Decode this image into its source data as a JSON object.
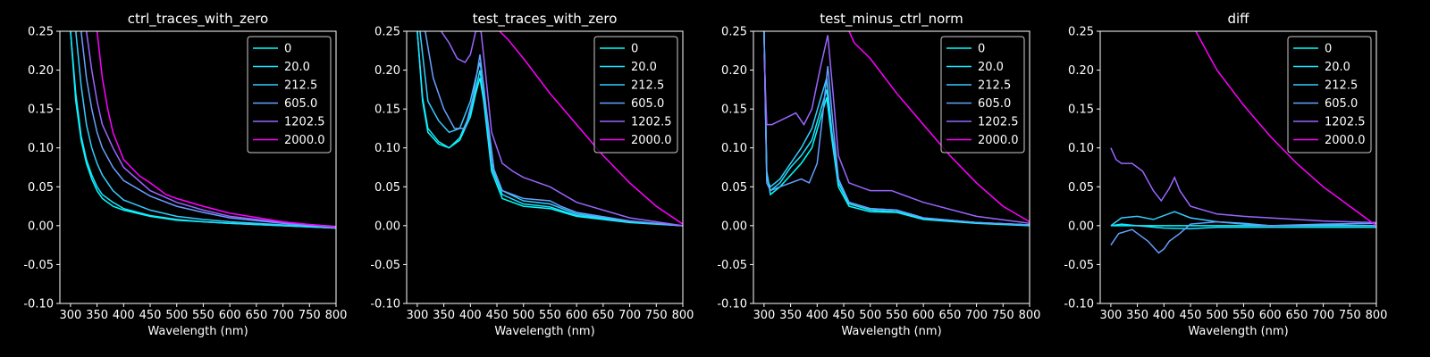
{
  "figure": {
    "background": "#000000",
    "foreground": "#ffffff"
  },
  "legend_colors": {
    "0": "#00ffff",
    "20.0": "#1ae5ff",
    "212.5": "#33ccff",
    "605.0": "#66a0ff",
    "1202.5": "#9966ff",
    "2000.0": "#ff00ff"
  },
  "chart_data": [
    {
      "type": "line",
      "title": "ctrl_traces_with_zero",
      "xlabel": "Wavelength (nm)",
      "ylabel": "",
      "xlim": [
        280,
        800
      ],
      "ylim": [
        -0.1,
        0.25
      ],
      "xticks": [
        300,
        350,
        400,
        450,
        500,
        550,
        600,
        650,
        700,
        750,
        800
      ],
      "yticks": [
        -0.1,
        -0.05,
        0.0,
        0.05,
        0.1,
        0.15,
        0.2,
        0.25
      ],
      "legend_position": "upper right",
      "series": [
        {
          "name": "0",
          "color": "#00ffff",
          "x": [
            300,
            310,
            320,
            330,
            340,
            350,
            360,
            380,
            400,
            450,
            500,
            550,
            600,
            700,
            800
          ],
          "y": [
            0.25,
            0.16,
            0.11,
            0.08,
            0.06,
            0.045,
            0.035,
            0.025,
            0.02,
            0.012,
            0.007,
            0.005,
            0.003,
            0.0,
            -0.003
          ]
        },
        {
          "name": "20.0",
          "color": "#1ae5ff",
          "x": [
            300,
            310,
            320,
            330,
            340,
            350,
            360,
            380,
            400,
            450,
            500,
            550,
            600,
            700,
            800
          ],
          "y": [
            0.25,
            0.17,
            0.115,
            0.085,
            0.065,
            0.05,
            0.04,
            0.03,
            0.022,
            0.013,
            0.008,
            0.005,
            0.003,
            0.0,
            -0.003
          ]
        },
        {
          "name": "212.5",
          "color": "#33ccff",
          "x": [
            310,
            320,
            330,
            340,
            350,
            360,
            380,
            400,
            450,
            500,
            550,
            600,
            700,
            800
          ],
          "y": [
            0.25,
            0.18,
            0.13,
            0.1,
            0.08,
            0.065,
            0.045,
            0.033,
            0.02,
            0.012,
            0.008,
            0.005,
            0.001,
            -0.002
          ]
        },
        {
          "name": "605.0",
          "color": "#66a0ff",
          "x": [
            320,
            330,
            340,
            350,
            360,
            380,
            400,
            450,
            500,
            550,
            600,
            700,
            800
          ],
          "y": [
            0.25,
            0.19,
            0.15,
            0.12,
            0.1,
            0.075,
            0.058,
            0.038,
            0.025,
            0.017,
            0.01,
            0.003,
            -0.002
          ]
        },
        {
          "name": "1202.5",
          "color": "#9966ff",
          "x": [
            330,
            340,
            350,
            360,
            380,
            400,
            450,
            500,
            550,
            600,
            700,
            800
          ],
          "y": [
            0.25,
            0.2,
            0.16,
            0.13,
            0.1,
            0.075,
            0.045,
            0.03,
            0.02,
            0.012,
            0.004,
            -0.001
          ]
        },
        {
          "name": "2000.0",
          "color": "#ff00ff",
          "x": [
            350,
            360,
            370,
            380,
            400,
            430,
            450,
            480,
            500,
            550,
            600,
            700,
            800
          ],
          "y": [
            0.25,
            0.19,
            0.15,
            0.12,
            0.085,
            0.064,
            0.055,
            0.04,
            0.035,
            0.025,
            0.016,
            0.005,
            -0.002
          ]
        }
      ]
    },
    {
      "type": "line",
      "title": "test_traces_with_zero",
      "xlabel": "Wavelength (nm)",
      "ylabel": "",
      "xlim": [
        280,
        800
      ],
      "ylim": [
        -0.1,
        0.25
      ],
      "xticks": [
        300,
        350,
        400,
        450,
        500,
        550,
        600,
        650,
        700,
        750,
        800
      ],
      "yticks": [
        -0.1,
        -0.05,
        0.0,
        0.05,
        0.1,
        0.15,
        0.2,
        0.25
      ],
      "legend_position": "upper right",
      "series": [
        {
          "name": "0",
          "color": "#00ffff",
          "x": [
            300,
            310,
            320,
            340,
            360,
            380,
            400,
            410,
            418,
            425,
            440,
            460,
            500,
            550,
            600,
            700,
            800
          ],
          "y": [
            0.25,
            0.16,
            0.12,
            0.105,
            0.1,
            0.11,
            0.14,
            0.17,
            0.19,
            0.16,
            0.07,
            0.035,
            0.025,
            0.022,
            0.012,
            0.004,
            0.0
          ]
        },
        {
          "name": "20.0",
          "color": "#1ae5ff",
          "x": [
            300,
            310,
            320,
            340,
            360,
            380,
            400,
            410,
            418,
            425,
            440,
            460,
            500,
            550,
            600,
            700,
            800
          ],
          "y": [
            0.25,
            0.165,
            0.125,
            0.108,
            0.1,
            0.113,
            0.145,
            0.175,
            0.2,
            0.165,
            0.075,
            0.04,
            0.028,
            0.024,
            0.013,
            0.005,
            0.0
          ]
        },
        {
          "name": "212.5",
          "color": "#33ccff",
          "x": [
            305,
            320,
            340,
            360,
            380,
            400,
            410,
            418,
            425,
            440,
            460,
            500,
            550,
            600,
            700,
            800
          ],
          "y": [
            0.25,
            0.16,
            0.135,
            0.12,
            0.125,
            0.16,
            0.19,
            0.21,
            0.18,
            0.08,
            0.045,
            0.032,
            0.028,
            0.015,
            0.005,
            0.0
          ]
        },
        {
          "name": "605.0",
          "color": "#66a0ff",
          "x": [
            315,
            330,
            350,
            370,
            390,
            405,
            418,
            430,
            445,
            460,
            500,
            550,
            570,
            600,
            700,
            800
          ],
          "y": [
            0.25,
            0.19,
            0.15,
            0.125,
            0.125,
            0.165,
            0.22,
            0.15,
            0.07,
            0.045,
            0.035,
            0.032,
            0.025,
            0.017,
            0.006,
            0.0
          ]
        },
        {
          "name": "1202.5",
          "color": "#9966ff",
          "x": [
            345,
            360,
            375,
            390,
            400,
            410,
            420,
            428,
            440,
            460,
            480,
            500,
            550,
            600,
            700,
            800
          ],
          "y": [
            0.25,
            0.235,
            0.215,
            0.21,
            0.22,
            0.25,
            0.25,
            0.2,
            0.12,
            0.08,
            0.07,
            0.062,
            0.05,
            0.03,
            0.01,
            0.0
          ]
        },
        {
          "name": "2000.0",
          "color": "#ff00ff",
          "x": [
            455,
            470,
            500,
            550,
            600,
            650,
            700,
            750,
            800
          ],
          "y": [
            0.25,
            0.24,
            0.215,
            0.17,
            0.13,
            0.09,
            0.055,
            0.025,
            0.002
          ]
        }
      ]
    },
    {
      "type": "line",
      "title": "test_minus_ctrl_norm",
      "xlabel": "Wavelength (nm)",
      "ylabel": "",
      "xlim": [
        280,
        800
      ],
      "ylim": [
        -0.1,
        0.25
      ],
      "xticks": [
        300,
        350,
        400,
        450,
        500,
        550,
        600,
        650,
        700,
        750,
        800
      ],
      "yticks": [
        -0.1,
        -0.05,
        0.0,
        0.05,
        0.1,
        0.15,
        0.2,
        0.25
      ],
      "legend_position": "upper right",
      "series": [
        {
          "name": "0",
          "color": "#00ffff",
          "x": [
            300,
            305,
            312,
            330,
            350,
            370,
            390,
            405,
            418,
            428,
            440,
            460,
            500,
            550,
            600,
            700,
            800
          ],
          "y": [
            0.25,
            0.07,
            0.04,
            0.05,
            0.065,
            0.08,
            0.1,
            0.135,
            0.165,
            0.11,
            0.05,
            0.025,
            0.018,
            0.017,
            0.008,
            0.003,
            0.0
          ]
        },
        {
          "name": "20.0",
          "color": "#1ae5ff",
          "x": [
            300,
            305,
            312,
            330,
            350,
            370,
            390,
            405,
            418,
            428,
            440,
            460,
            500,
            550,
            600,
            700,
            800
          ],
          "y": [
            0.25,
            0.065,
            0.045,
            0.055,
            0.075,
            0.09,
            0.11,
            0.145,
            0.175,
            0.115,
            0.055,
            0.028,
            0.02,
            0.018,
            0.009,
            0.004,
            0.001
          ]
        },
        {
          "name": "212.5",
          "color": "#33ccff",
          "x": [
            300,
            305,
            312,
            330,
            350,
            370,
            390,
            405,
            418,
            428,
            440,
            460,
            500,
            550,
            600,
            700,
            800
          ],
          "y": [
            0.25,
            0.06,
            0.05,
            0.06,
            0.08,
            0.1,
            0.125,
            0.16,
            0.19,
            0.12,
            0.06,
            0.03,
            0.022,
            0.02,
            0.01,
            0.004,
            0.001
          ]
        },
        {
          "name": "605.0",
          "color": "#66a0ff",
          "x": [
            300,
            305,
            312,
            330,
            350,
            370,
            385,
            400,
            410,
            420,
            430,
            440,
            460,
            500,
            550,
            600,
            700,
            800
          ],
          "y": [
            0.25,
            0.055,
            0.045,
            0.05,
            0.055,
            0.06,
            0.055,
            0.08,
            0.14,
            0.205,
            0.13,
            0.06,
            0.03,
            0.022,
            0.02,
            0.01,
            0.004,
            0.001
          ]
        },
        {
          "name": "1202.5",
          "color": "#9966ff",
          "x": [
            300,
            305,
            315,
            330,
            345,
            360,
            375,
            390,
            405,
            420,
            430,
            440,
            460,
            480,
            500,
            540,
            560,
            600,
            700,
            800
          ],
          "y": [
            0.22,
            0.13,
            0.13,
            0.135,
            0.14,
            0.145,
            0.13,
            0.15,
            0.2,
            0.245,
            0.17,
            0.09,
            0.055,
            0.05,
            0.045,
            0.045,
            0.04,
            0.03,
            0.012,
            0.003
          ]
        },
        {
          "name": "2000.0",
          "color": "#ff00ff",
          "x": [
            460,
            470,
            500,
            550,
            600,
            650,
            700,
            750,
            800
          ],
          "y": [
            0.25,
            0.235,
            0.215,
            0.17,
            0.13,
            0.09,
            0.055,
            0.025,
            0.005
          ]
        }
      ]
    },
    {
      "type": "line",
      "title": "diff",
      "xlabel": "Wavelength (nm)",
      "ylabel": "",
      "xlim": [
        280,
        800
      ],
      "ylim": [
        -0.1,
        0.25
      ],
      "xticks": [
        300,
        350,
        400,
        450,
        500,
        550,
        600,
        650,
        700,
        750,
        800
      ],
      "yticks": [
        -0.1,
        -0.05,
        0.0,
        0.05,
        0.1,
        0.15,
        0.2,
        0.25
      ],
      "legend_position": "upper right",
      "series": [
        {
          "name": "0",
          "color": "#00ffff",
          "x": [
            300,
            800
          ],
          "y": [
            0.0,
            0.0
          ]
        },
        {
          "name": "20.0",
          "color": "#1ae5ff",
          "x": [
            300,
            320,
            350,
            400,
            450,
            500,
            550,
            600,
            700,
            800
          ],
          "y": [
            0.0,
            0.002,
            0.0,
            -0.003,
            -0.004,
            -0.002,
            -0.002,
            -0.002,
            -0.002,
            -0.002
          ]
        },
        {
          "name": "212.5",
          "color": "#33ccff",
          "x": [
            300,
            320,
            350,
            380,
            420,
            450,
            500,
            550,
            600,
            700,
            800
          ],
          "y": [
            0.0,
            0.01,
            0.012,
            0.008,
            0.018,
            0.01,
            0.005,
            0.003,
            0.0,
            0.001,
            0.0
          ]
        },
        {
          "name": "605.0",
          "color": "#66a0ff",
          "x": [
            300,
            315,
            340,
            370,
            390,
            400,
            410,
            430,
            450,
            500,
            550,
            600,
            700,
            800
          ],
          "y": [
            -0.025,
            -0.01,
            -0.005,
            -0.02,
            -0.035,
            -0.03,
            -0.02,
            -0.01,
            0.002,
            0.005,
            0.002,
            0.0,
            0.002,
            0.003
          ]
        },
        {
          "name": "1202.5",
          "color": "#9966ff",
          "x": [
            300,
            310,
            320,
            340,
            360,
            380,
            395,
            410,
            420,
            430,
            450,
            500,
            550,
            600,
            700,
            800
          ],
          "y": [
            0.1,
            0.085,
            0.08,
            0.08,
            0.07,
            0.045,
            0.032,
            0.048,
            0.062,
            0.045,
            0.025,
            0.015,
            0.012,
            0.01,
            0.006,
            0.004
          ]
        },
        {
          "name": "2000.0",
          "color": "#ff00ff",
          "x": [
            460,
            480,
            500,
            550,
            600,
            650,
            700,
            750,
            800
          ],
          "y": [
            0.25,
            0.225,
            0.2,
            0.155,
            0.115,
            0.08,
            0.05,
            0.025,
            0.0
          ]
        }
      ]
    }
  ]
}
